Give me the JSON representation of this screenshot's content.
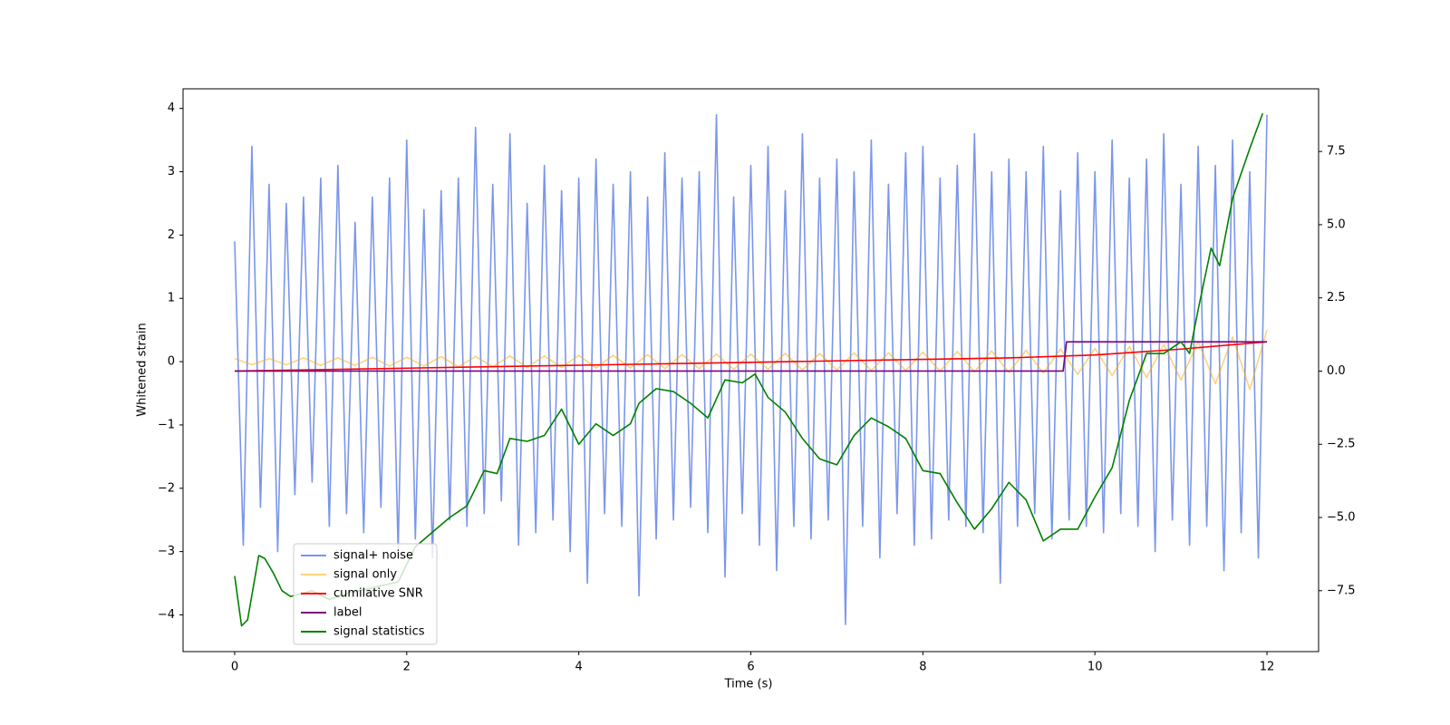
{
  "chart_data": {
    "type": "line",
    "xlabel": "Time (s)",
    "ylabel": "Whitened strain",
    "xlim": [
      -0.6,
      12.6
    ],
    "ylim": [
      -4.58,
      4.31
    ],
    "y2lim": [
      -9.58,
      9.64
    ],
    "xticks": [
      0,
      2,
      4,
      6,
      8,
      10,
      12
    ],
    "yticks": [
      {
        "value": -4,
        "label": "−4"
      },
      {
        "value": -3,
        "label": "−3"
      },
      {
        "value": -2,
        "label": "−2"
      },
      {
        "value": -1,
        "label": "−1"
      },
      0,
      1,
      2,
      3,
      4
    ],
    "y2ticks": [
      {
        "value": -7.5,
        "label": "−7.5"
      },
      {
        "value": -5,
        "label": "−5.0"
      },
      {
        "value": -2.5,
        "label": "−2.5"
      },
      {
        "value": 0,
        "label": "0.0"
      },
      2.5,
      {
        "value": 5,
        "label": "5.0"
      },
      7.5
    ],
    "legend": "lower left",
    "series": [
      {
        "name": "signal+ noise",
        "color": "#4169e1",
        "alpha": 0.7,
        "x": [
          0,
          0.1,
          0.2,
          0.3,
          0.4,
          0.5,
          0.6,
          0.7,
          0.8,
          0.9,
          1,
          1.1,
          1.2,
          1.3,
          1.4,
          1.5,
          1.6,
          1.7,
          1.8,
          1.9,
          2,
          2.1,
          2.2,
          2.3,
          2.4,
          2.5,
          2.6,
          2.7,
          2.8,
          2.9,
          3,
          3.1,
          3.2,
          3.3,
          3.4,
          3.5,
          3.6,
          3.7,
          3.8,
          3.9,
          4,
          4.1,
          4.2,
          4.3,
          4.4,
          4.5,
          4.6,
          4.7,
          4.8,
          4.9,
          5,
          5.1,
          5.2,
          5.3,
          5.4,
          5.5,
          5.6,
          5.7,
          5.8,
          5.9,
          6,
          6.1,
          6.2,
          6.3,
          6.4,
          6.5,
          6.6,
          6.7,
          6.8,
          6.9,
          7,
          7.1,
          7.2,
          7.3,
          7.4,
          7.5,
          7.6,
          7.7,
          7.8,
          7.9,
          8,
          8.1,
          8.2,
          8.3,
          8.4,
          8.5,
          8.6,
          8.7,
          8.8,
          8.9,
          9,
          9.1,
          9.2,
          9.3,
          9.4,
          9.5,
          9.6,
          9.7,
          9.8,
          9.9,
          10,
          10.1,
          10.2,
          10.3,
          10.4,
          10.5,
          10.6,
          10.7,
          10.8,
          10.9,
          11,
          11.1,
          11.2,
          11.3,
          11.4,
          11.5,
          11.6,
          11.7,
          11.8,
          11.9,
          12
        ],
        "values": [
          1.9,
          -2.9,
          3.4,
          -2.3,
          2.8,
          -3.0,
          2.5,
          -2.1,
          2.6,
          -1.9,
          2.9,
          -2.6,
          3.1,
          -2.4,
          2.2,
          -2.7,
          2.6,
          -2.3,
          2.9,
          -3.0,
          3.5,
          -2.8,
          2.4,
          -3.1,
          2.7,
          -2.5,
          2.9,
          -2.6,
          3.7,
          -2.4,
          2.8,
          -2.2,
          3.6,
          -2.9,
          2.5,
          -2.7,
          3.1,
          -2.5,
          2.7,
          -3.0,
          2.9,
          -3.5,
          3.2,
          -2.4,
          2.8,
          -2.6,
          3.0,
          -3.7,
          2.6,
          -2.8,
          3.3,
          -2.5,
          2.9,
          -2.3,
          3.0,
          -2.7,
          3.9,
          -3.4,
          2.6,
          -2.4,
          3.1,
          -2.9,
          3.4,
          -3.3,
          2.7,
          -2.6,
          3.6,
          -2.8,
          2.9,
          -2.5,
          3.2,
          -4.15,
          3.0,
          -2.6,
          3.5,
          -3.1,
          2.8,
          -2.4,
          3.3,
          -2.9,
          3.4,
          -2.8,
          2.9,
          -2.5,
          3.1,
          -2.6,
          3.6,
          -2.7,
          3.0,
          -3.5,
          3.2,
          -2.6,
          3.0,
          -2.4,
          3.4,
          -2.8,
          2.7,
          -2.5,
          3.3,
          -2.6,
          3.0,
          -2.7,
          3.5,
          -2.4,
          2.9,
          -2.6,
          3.2,
          -3.0,
          3.6,
          -2.5,
          2.8,
          -2.9,
          3.4,
          -2.6,
          3.1,
          -3.3,
          3.5,
          -2.7,
          3.0,
          -3.1,
          3.9
        ]
      },
      {
        "name": "signal only",
        "color": "#ffa500",
        "alpha": 0.5,
        "x": [
          0,
          0.2,
          0.4,
          0.6,
          0.8,
          1,
          1.2,
          1.4,
          1.6,
          1.8,
          2,
          2.2,
          2.4,
          2.6,
          2.8,
          3,
          3.2,
          3.4,
          3.6,
          3.8,
          4,
          4.2,
          4.4,
          4.6,
          4.8,
          5,
          5.2,
          5.4,
          5.6,
          5.8,
          6,
          6.2,
          6.4,
          6.6,
          6.8,
          7,
          7.2,
          7.4,
          7.6,
          7.8,
          8,
          8.2,
          8.4,
          8.6,
          8.8,
          9,
          9.2,
          9.4,
          9.6,
          9.8,
          10,
          10.2,
          10.4,
          10.6,
          10.8,
          11,
          11.2,
          11.4,
          11.6,
          11.8,
          12
        ],
        "values": [
          0.05,
          -0.05,
          0.05,
          -0.05,
          0.06,
          -0.06,
          0.06,
          -0.06,
          0.07,
          -0.07,
          0.07,
          -0.07,
          0.08,
          -0.08,
          0.08,
          -0.08,
          0.09,
          -0.09,
          0.09,
          -0.09,
          0.1,
          -0.1,
          0.1,
          -0.1,
          0.11,
          -0.11,
          0.11,
          -0.11,
          0.12,
          -0.12,
          0.12,
          -0.12,
          0.13,
          -0.13,
          0.13,
          -0.13,
          0.14,
          -0.14,
          0.14,
          -0.14,
          0.15,
          -0.15,
          0.16,
          -0.16,
          0.17,
          -0.17,
          0.18,
          -0.18,
          0.2,
          -0.2,
          0.21,
          -0.22,
          0.24,
          -0.25,
          0.27,
          -0.29,
          0.32,
          -0.35,
          0.39,
          -0.44,
          0.5
        ]
      },
      {
        "name": "cumilative SNR",
        "color": "#ff0000",
        "axis": "y2",
        "x": [
          0,
          2,
          4,
          6,
          8,
          9,
          10,
          11,
          12
        ],
        "values": [
          0,
          0.1,
          0.2,
          0.3,
          0.4,
          0.45,
          0.55,
          0.75,
          1.0
        ]
      },
      {
        "name": "label",
        "color": "#800080",
        "axis": "y2",
        "x": [
          0,
          9.63,
          9.67,
          12
        ],
        "values": [
          0,
          0,
          1,
          1
        ]
      },
      {
        "name": "signal statistics",
        "color": "#008000",
        "axis": "y2",
        "x": [
          0,
          0.08,
          0.15,
          0.28,
          0.35,
          0.45,
          0.55,
          0.65,
          0.9,
          1.1,
          1.3,
          1.6,
          1.9,
          2.1,
          2.3,
          2.5,
          2.7,
          2.9,
          3.05,
          3.2,
          3.4,
          3.6,
          3.8,
          4.0,
          4.2,
          4.4,
          4.6,
          4.7,
          4.9,
          5.1,
          5.3,
          5.5,
          5.7,
          5.9,
          6.05,
          6.2,
          6.4,
          6.6,
          6.8,
          7.0,
          7.2,
          7.4,
          7.6,
          7.8,
          8.0,
          8.2,
          8.4,
          8.6,
          8.8,
          9.0,
          9.2,
          9.4,
          9.6,
          9.8,
          10.0,
          10.2,
          10.4,
          10.6,
          10.8,
          11.0,
          11.1,
          11.2,
          11.35,
          11.45,
          11.6,
          11.8,
          11.95
        ],
        "values": [
          -7.0,
          -8.7,
          -8.5,
          -6.3,
          -6.4,
          -6.9,
          -7.5,
          -7.7,
          -7.5,
          -7.8,
          -7.6,
          -7.4,
          -7.2,
          -6.0,
          -5.5,
          -5.0,
          -4.6,
          -3.4,
          -3.5,
          -2.3,
          -2.4,
          -2.2,
          -1.3,
          -2.5,
          -1.8,
          -2.2,
          -1.8,
          -1.1,
          -0.6,
          -0.7,
          -1.1,
          -1.6,
          -0.3,
          -0.4,
          -0.1,
          -0.9,
          -1.4,
          -2.3,
          -3.0,
          -3.2,
          -2.2,
          -1.6,
          -1.9,
          -2.3,
          -3.4,
          -3.5,
          -4.5,
          -5.4,
          -4.7,
          -3.8,
          -4.4,
          -5.8,
          -5.4,
          -5.4,
          -4.3,
          -3.3,
          -1.0,
          0.6,
          0.6,
          1.0,
          0.6,
          2.1,
          4.2,
          3.6,
          5.9,
          7.6,
          8.8
        ]
      }
    ]
  }
}
